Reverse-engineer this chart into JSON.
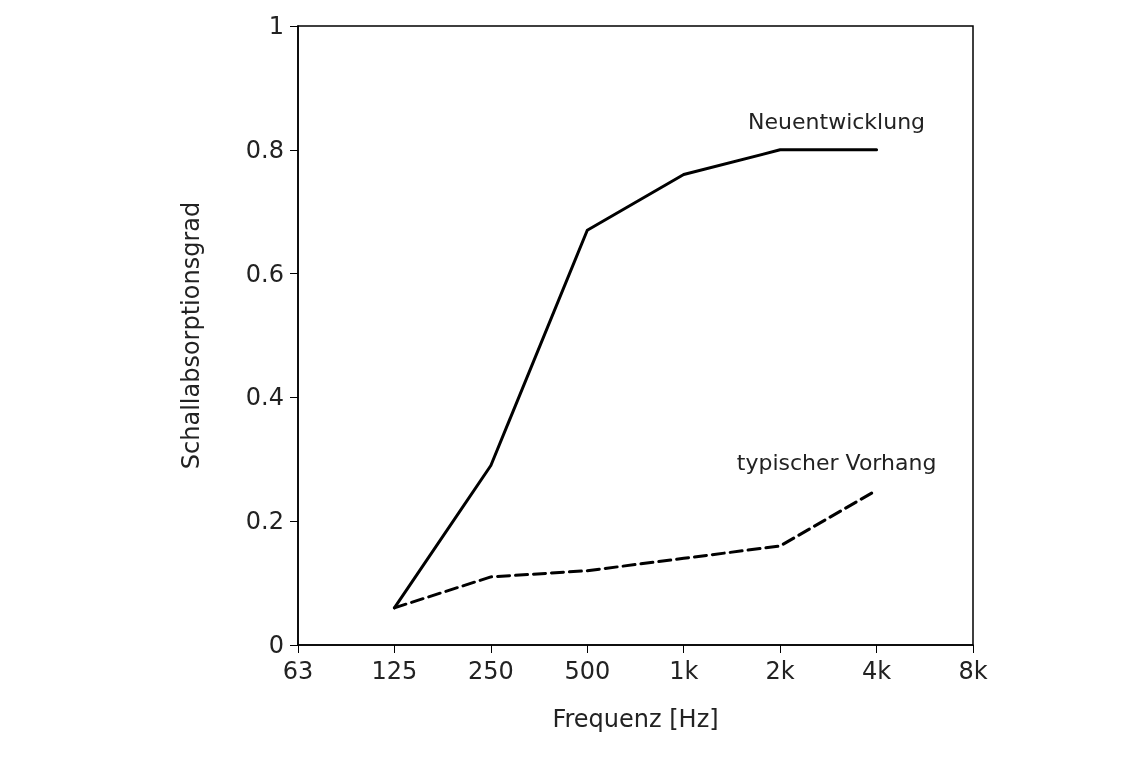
{
  "chart_data": {
    "type": "line",
    "xlabel": "Frequenz [Hz]",
    "ylabel": "Schallabsorptionsgrad",
    "categories": [
      "63",
      "125",
      "250",
      "500",
      "1k",
      "2k",
      "4k",
      "8k"
    ],
    "series": [
      {
        "name": "Neuentwicklung",
        "color": "#000000",
        "line_style": "solid",
        "values": [
          null,
          0.06,
          0.29,
          0.67,
          0.76,
          0.8,
          0.8,
          null
        ]
      },
      {
        "name": "typischer Vorhang",
        "color": "#000000",
        "line_style": "dashed",
        "values": [
          null,
          0.06,
          0.11,
          0.12,
          0.14,
          0.16,
          0.25,
          null
        ]
      }
    ],
    "ylim": [
      0,
      1
    ],
    "yticks": [
      0,
      0.2,
      0.4,
      0.6,
      0.8,
      1
    ],
    "grid": false,
    "legend": false,
    "marker": "none"
  }
}
